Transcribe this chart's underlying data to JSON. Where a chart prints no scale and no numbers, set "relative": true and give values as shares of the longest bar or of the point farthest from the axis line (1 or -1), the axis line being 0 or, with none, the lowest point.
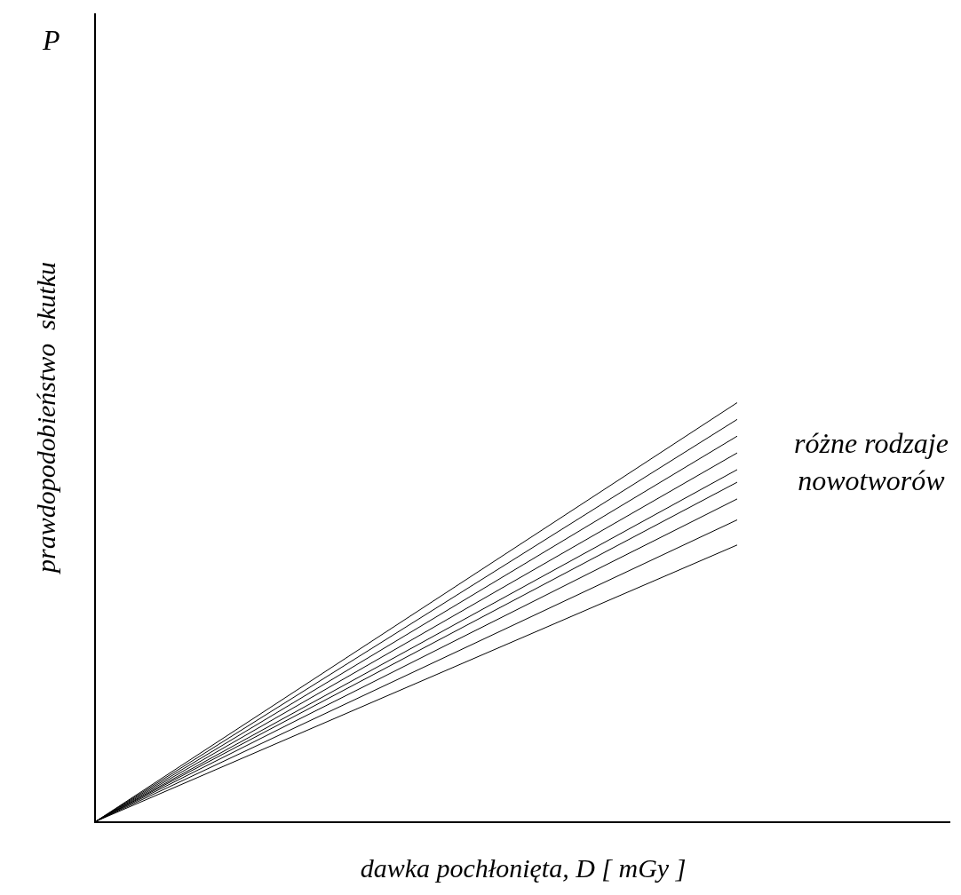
{
  "chart_data": {
    "type": "line",
    "relative": true,
    "xlabel": "dawka pochłonięta, D [ mGy ]",
    "ylabel": "prawdopodobieństwo  skutku",
    "categories": [
      null,
      null
    ],
    "series": [
      {
        "color": "#000000",
        "values": [
          0,
          1
        ]
      },
      {
        "color": "#000000",
        "values": [
          0,
          0.96
        ]
      },
      {
        "color": "#000000",
        "values": [
          0,
          0.92
        ]
      },
      {
        "color": "#000000",
        "values": [
          0,
          0.88
        ]
      },
      {
        "color": "#000000",
        "values": [
          0,
          0.84
        ]
      },
      {
        "color": "#000000",
        "values": [
          0,
          0.81
        ]
      },
      {
        "color": "#000000",
        "values": [
          0,
          0.77
        ]
      },
      {
        "color": "#000000",
        "values": [
          0,
          0.72
        ]
      },
      {
        "color": "#000000",
        "values": [
          0,
          0.66
        ]
      }
    ],
    "annotations": [
      "P",
      "różne rodzaje\nnowotworów"
    ],
    "marker": "none",
    "line_style": "solid"
  }
}
